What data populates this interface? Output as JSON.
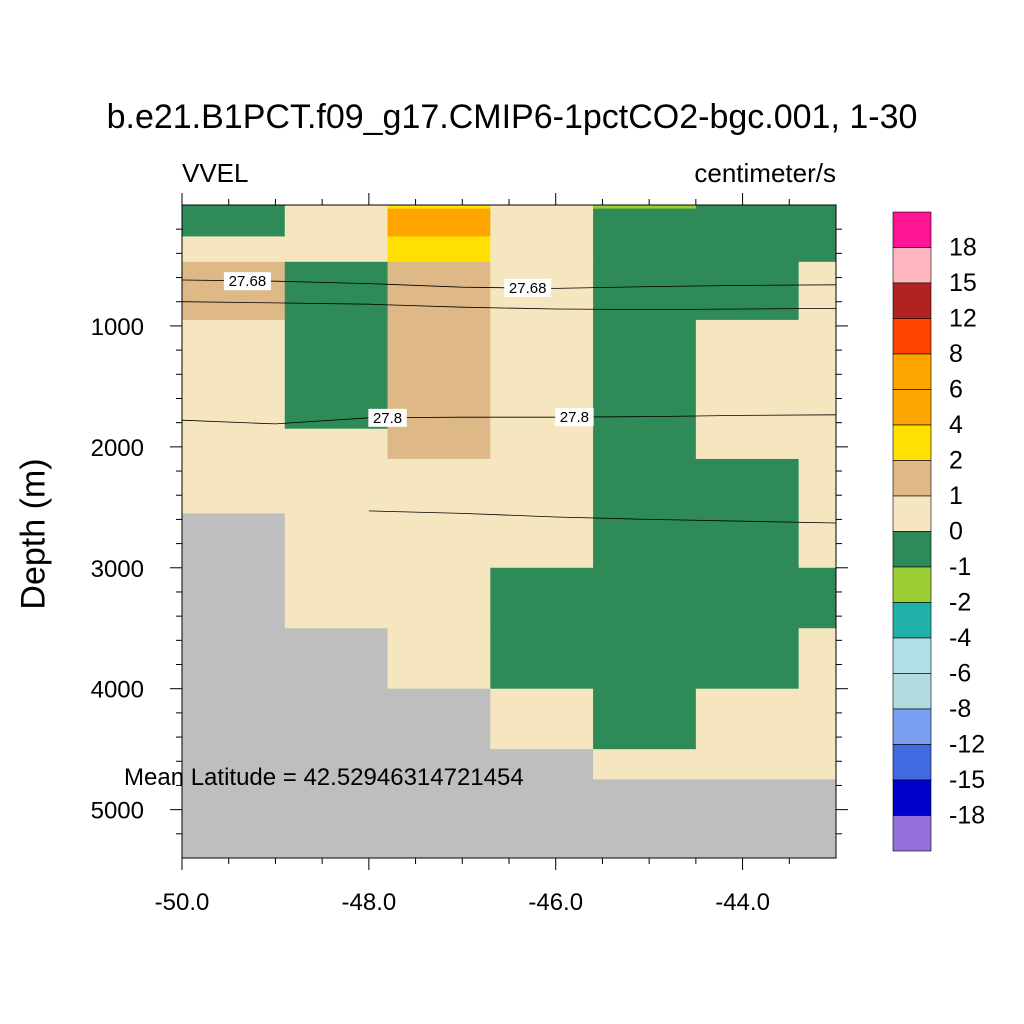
{
  "chart_data": {
    "type": "heatmap",
    "title": "b.e21.B1PCT.f09_g17.CMIP6-1pctCO2-bgc.001, 1-30",
    "left_string": "VVEL",
    "right_string": "centimeter/s",
    "ylabel": "Depth (m)",
    "xlabel": "",
    "xlim": [
      -50.0,
      -43.0
    ],
    "ylim_depth": [
      5400,
      0
    ],
    "y_reversed": true,
    "x_ticks": [
      "-50.0",
      "-48.0",
      "-46.0",
      "-44.0"
    ],
    "x_tick_values": [
      -50,
      -48,
      -46,
      -44
    ],
    "y_ticks": [
      "1000",
      "2000",
      "3000",
      "4000",
      "5000"
    ],
    "y_tick_values": [
      1000,
      2000,
      3000,
      4000,
      5000
    ],
    "annotation": "Mean Latitude = 42.52946314721454",
    "colorbar": {
      "labels": [
        "18",
        "15",
        "12",
        "8",
        "6",
        "4",
        "2",
        "1",
        "0",
        "-1",
        "-2",
        "-4",
        "-6",
        "-8",
        "-12",
        "-15",
        "-18"
      ],
      "colors": [
        "#ff1493",
        "#ffb6c1",
        "#b22222",
        "#ff4500",
        "#ffa500",
        "#ffa500",
        "#ffe000",
        "#deb887",
        "#f5e6c0",
        "#2e8b57",
        "#9acd32",
        "#20b2aa",
        "#b0e0e6",
        "#b0dce0",
        "#7b9ff0",
        "#4169e1",
        "#0000cd",
        "#9370db"
      ]
    },
    "missing_color": "#bebebe",
    "x_bounds": [
      -50.0,
      -48.9,
      -47.8,
      -46.7,
      -45.6,
      -44.5,
      -43.4,
      -43.0
    ],
    "depth_bounds": [
      0,
      30,
      260,
      470,
      950,
      1850,
      2100,
      2550,
      3000,
      3500,
      4000,
      4500,
      4750,
      5400
    ],
    "cells": [
      [
        -0.5,
        0.5,
        3.0,
        0.3,
        -1.5,
        -0.5,
        -0.5
      ],
      [
        -0.5,
        0.5,
        5.0,
        0.3,
        -0.5,
        -0.5,
        -0.5
      ],
      [
        0.3,
        0.5,
        3.0,
        0.3,
        -0.5,
        -0.5,
        -0.5
      ],
      [
        1.5,
        -0.5,
        1.5,
        0.3,
        -0.5,
        -0.5,
        0.3
      ],
      [
        0.3,
        -0.5,
        1.5,
        0.3,
        -0.5,
        0.3,
        0.3
      ],
      [
        0.3,
        0.3,
        1.5,
        0.3,
        -0.5,
        0.3,
        0.3
      ],
      [
        0.3,
        0.3,
        0.3,
        0.3,
        -0.5,
        -0.5,
        0.3
      ],
      [
        null,
        0.3,
        0.3,
        0.3,
        -0.5,
        -0.5,
        0.3
      ],
      [
        null,
        0.3,
        0.3,
        -0.5,
        -0.5,
        -0.5,
        -0.5
      ],
      [
        null,
        null,
        0.3,
        -0.5,
        -0.5,
        -0.5,
        0.3
      ],
      [
        null,
        null,
        null,
        0.3,
        -0.5,
        0.3,
        0.3
      ],
      [
        null,
        null,
        null,
        null,
        0.3,
        0.3,
        0.3
      ],
      [
        null,
        null,
        null,
        null,
        null,
        null,
        null
      ]
    ],
    "contours": [
      {
        "label": "27.68",
        "points": [
          [
            -50.0,
            620
          ],
          [
            -49.0,
            630
          ],
          [
            -48.0,
            650
          ],
          [
            -47.0,
            680
          ],
          [
            -46.0,
            690
          ],
          [
            -45.0,
            675
          ],
          [
            -44.0,
            665
          ],
          [
            -43.0,
            660
          ]
        ],
        "label_positions": [
          [
            -49.3,
            630
          ],
          [
            -46.3,
            685
          ]
        ]
      },
      {
        "label": "",
        "points": [
          [
            -50.0,
            800
          ],
          [
            -49.0,
            810
          ],
          [
            -48.0,
            820
          ],
          [
            -47.0,
            845
          ],
          [
            -46.0,
            860
          ],
          [
            -45.0,
            865
          ],
          [
            -44.0,
            860
          ],
          [
            -43.0,
            855
          ]
        ]
      },
      {
        "label": "27.8",
        "points": [
          [
            -50.0,
            1780
          ],
          [
            -49.0,
            1810
          ],
          [
            -48.0,
            1760
          ],
          [
            -47.0,
            1755
          ],
          [
            -46.0,
            1755
          ],
          [
            -45.0,
            1750
          ],
          [
            -44.0,
            1740
          ],
          [
            -43.0,
            1735
          ]
        ],
        "label_positions": [
          [
            -47.8,
            1760
          ],
          [
            -45.8,
            1755
          ]
        ]
      },
      {
        "label": "",
        "points": [
          [
            -48.0,
            2530
          ],
          [
            -47.0,
            2550
          ],
          [
            -46.0,
            2580
          ],
          [
            -45.0,
            2600
          ],
          [
            -44.0,
            2615
          ],
          [
            -43.0,
            2630
          ]
        ]
      }
    ]
  }
}
